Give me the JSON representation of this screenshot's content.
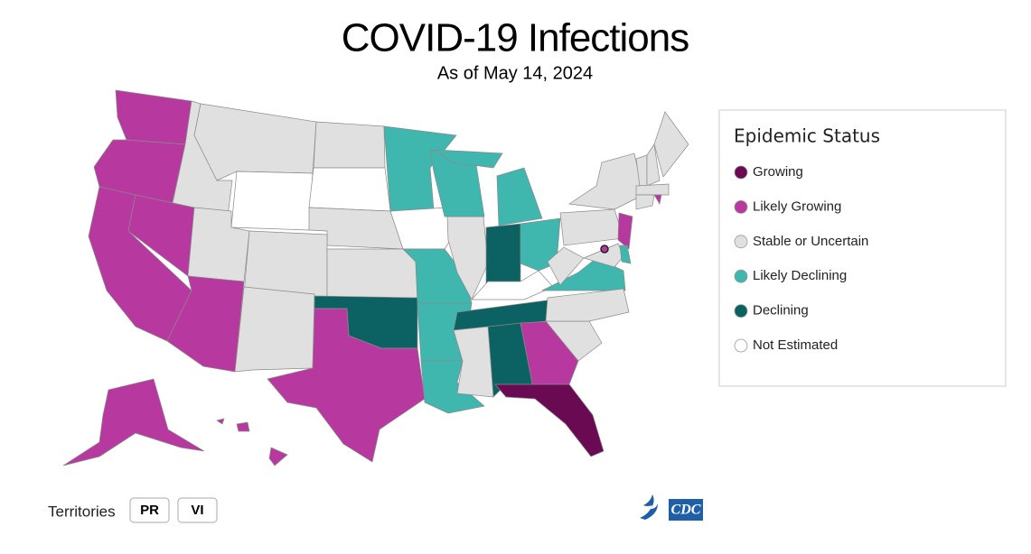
{
  "title": "COVID-19 Infections",
  "subtitle": "As of May 14, 2024",
  "legend": {
    "title": "Epidemic Status",
    "items": [
      {
        "label": "Growing",
        "color": "#6a0a52"
      },
      {
        "label": "Likely Growing",
        "color": "#b7399f"
      },
      {
        "label": "Stable or Uncertain",
        "color": "#e0e0e0"
      },
      {
        "label": "Likely Declining",
        "color": "#3fb6ae"
      },
      {
        "label": "Declining",
        "color": "#0c6163"
      },
      {
        "label": "Not Estimated",
        "color": "#ffffff"
      }
    ]
  },
  "regions": [
    {
      "status": "Likely Growing"
    },
    {
      "status": "Likely Growing"
    },
    {
      "status": "Stable or Uncertain"
    },
    {
      "status": "Stable or Uncertain"
    },
    {
      "status": "Not Estimated"
    },
    {
      "status": "Stable or Uncertain"
    },
    {
      "status": "Not Estimated"
    },
    {
      "status": "Stable or Uncertain"
    },
    {
      "status": "Likely Growing"
    },
    {
      "status": "Likely Growing"
    },
    {
      "status": "Stable or Uncertain"
    },
    {
      "status": "Stable or Uncertain"
    },
    {
      "status": "Likely Growing"
    },
    {
      "status": "Stable or Uncertain"
    },
    {
      "status": "Stable or Uncertain"
    },
    {
      "status": "Declining"
    },
    {
      "status": "Likely Growing"
    },
    {
      "status": "Likely Growing"
    },
    {
      "status": "Likely Declining"
    },
    {
      "status": "Not Estimated"
    },
    {
      "status": "Likely Declining"
    },
    {
      "status": "Likely Declining"
    },
    {
      "status": "Likely Declining"
    },
    {
      "status": "Stable or Uncertain"
    },
    {
      "status": "Likely Declining"
    },
    {
      "status": "Declining"
    },
    {
      "status": "Likely Declining"
    },
    {
      "status": "Not Estimated"
    },
    {
      "status": "Declining"
    },
    {
      "status": "Likely Declining"
    },
    {
      "status": "Declining"
    },
    {
      "status": "Likely Growing"
    },
    {
      "status": "Growing"
    },
    {
      "status": "Stable or Uncertain"
    },
    {
      "status": "Stable or Uncertain"
    },
    {
      "status": "Likely Declining"
    },
    {
      "status": "Stable or Uncertain"
    },
    {
      "status": "Stable or Uncertain"
    },
    {
      "status": "Stable or Uncertain"
    },
    {
      "status": "Likely Growing"
    },
    {
      "status": "Stable or Uncertain"
    },
    {
      "status": "Likely Declining"
    },
    {
      "status": "Stable or Uncertain"
    },
    {
      "status": "Stable or Uncertain"
    },
    {
      "status": "Stable or Uncertain"
    },
    {
      "status": "Stable or Uncertain"
    },
    {
      "status": "Stable or Uncertain"
    },
    {
      "status": "Stable or Uncertain"
    },
    {
      "status": "Likely Growing"
    },
    {
      "status": "Likely Growing"
    },
    {
      "status": "Likely Growing"
    }
  ],
  "territories": {
    "label": "Territories",
    "buttons": [
      "PR",
      "VI"
    ]
  },
  "logo": "CDC"
}
